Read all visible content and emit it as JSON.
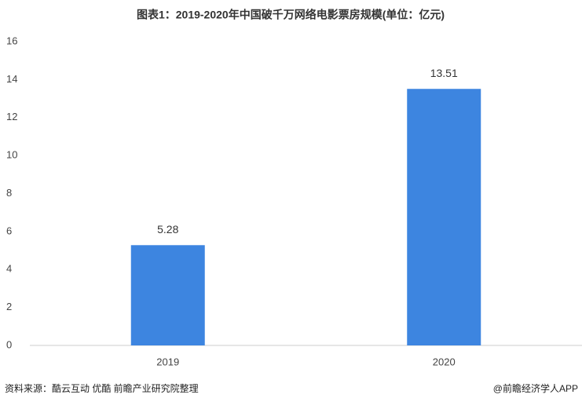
{
  "chart_data": {
    "type": "bar",
    "title": "图表1：2019-2020年中国破千万网络电影票房规模(单位：亿元)",
    "categories": [
      "2019",
      "2020"
    ],
    "values": [
      5.28,
      13.51
    ],
    "color": "#3d85e0",
    "ylim": [
      0,
      16
    ],
    "yticks": [
      0,
      2,
      4,
      6,
      8,
      10,
      12,
      14,
      16
    ],
    "source": "资料来源：酷云互动 优酷 前瞻产业研究院整理",
    "credit": "@前瞻经济学人APP"
  }
}
